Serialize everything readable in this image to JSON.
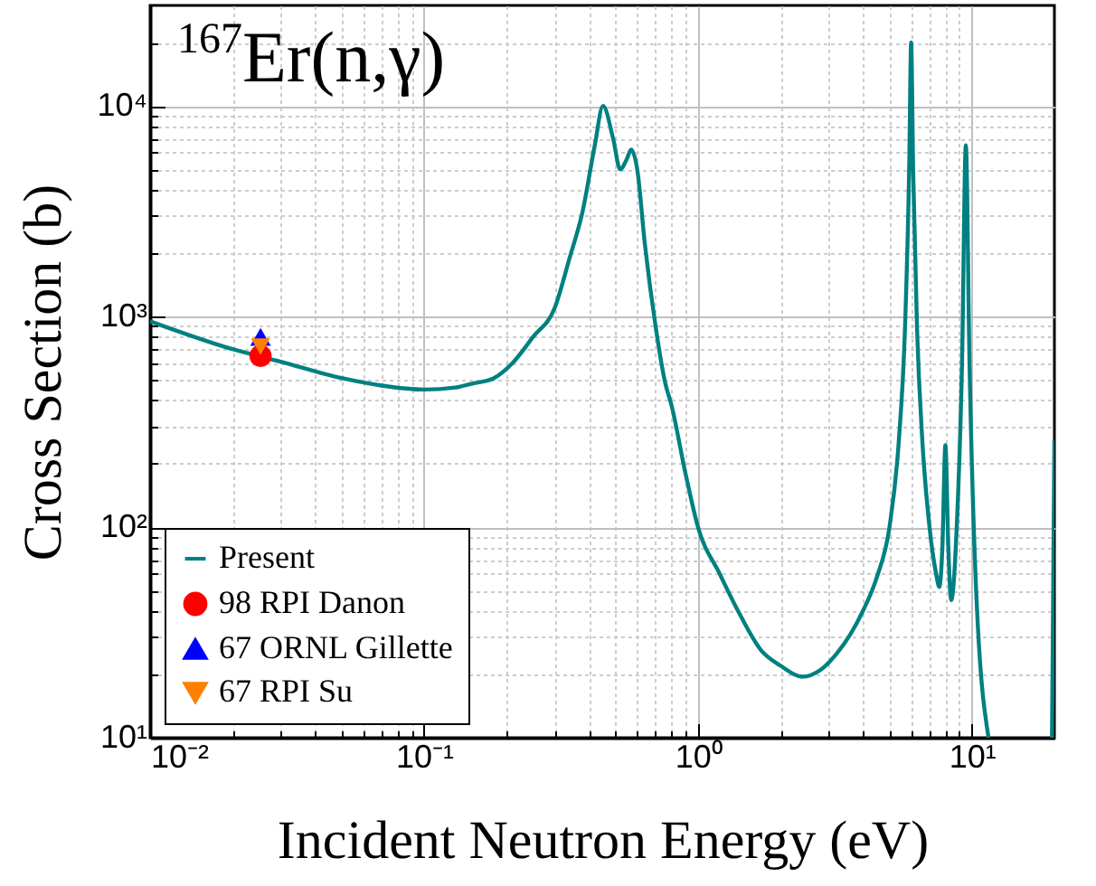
{
  "chart_data": {
    "type": "line",
    "title": "$^{167}$Er(n,γ)",
    "xlabel": "Incident Neutron Energy (eV)",
    "ylabel": "Cross Section (b)",
    "log": "xy",
    "grid": true,
    "legend": "bottom left",
    "xlim": [
      0.01,
      20
    ],
    "ylim": [
      10,
      30000
    ],
    "xticks": [
      {
        "value": 0.01,
        "label": "10⁻²"
      },
      {
        "value": 0.02,
        "label": null
      },
      {
        "value": 0.03,
        "label": null
      },
      {
        "value": 0.04,
        "label": null
      },
      {
        "value": 0.05,
        "label": null
      },
      {
        "value": 0.06,
        "label": null
      },
      {
        "value": 0.07,
        "label": null
      },
      {
        "value": 0.08,
        "label": null
      },
      {
        "value": 0.09,
        "label": null
      },
      {
        "value": 0.1,
        "label": "10⁻¹"
      },
      {
        "value": 0.2,
        "label": null
      },
      {
        "value": 0.3,
        "label": null
      },
      {
        "value": 0.4,
        "label": null
      },
      {
        "value": 0.5,
        "label": null
      },
      {
        "value": 0.6,
        "label": null
      },
      {
        "value": 0.7,
        "label": null
      },
      {
        "value": 0.8,
        "label": null
      },
      {
        "value": 0.9,
        "label": null
      },
      {
        "value": 1,
        "label": "10⁰"
      },
      {
        "value": 2,
        "label": null
      },
      {
        "value": 3,
        "label": null
      },
      {
        "value": 4,
        "label": null
      },
      {
        "value": 5,
        "label": null
      },
      {
        "value": 6,
        "label": null
      },
      {
        "value": 7,
        "label": null
      },
      {
        "value": 8,
        "label": null
      },
      {
        "value": 9,
        "label": null
      },
      {
        "value": 10,
        "label": "10¹"
      }
    ],
    "yticks": [
      {
        "value": 10,
        "label": "10¹"
      },
      {
        "value": 20,
        "label": null
      },
      {
        "value": 30,
        "label": null
      },
      {
        "value": 40,
        "label": null
      },
      {
        "value": 50,
        "label": null
      },
      {
        "value": 60,
        "label": null
      },
      {
        "value": 70,
        "label": null
      },
      {
        "value": 80,
        "label": null
      },
      {
        "value": 90,
        "label": null
      },
      {
        "value": 100,
        "label": "10²"
      },
      {
        "value": 200,
        "label": null
      },
      {
        "value": 300,
        "label": null
      },
      {
        "value": 400,
        "label": null
      },
      {
        "value": 500,
        "label": null
      },
      {
        "value": 600,
        "label": null
      },
      {
        "value": 700,
        "label": null
      },
      {
        "value": 800,
        "label": null
      },
      {
        "value": 900,
        "label": null
      },
      {
        "value": 1000,
        "label": "10³"
      },
      {
        "value": 2000,
        "label": null
      },
      {
        "value": 3000,
        "label": null
      },
      {
        "value": 4000,
        "label": null
      },
      {
        "value": 5000,
        "label": null
      },
      {
        "value": 6000,
        "label": null
      },
      {
        "value": 7000,
        "label": null
      },
      {
        "value": 8000,
        "label": null
      },
      {
        "value": 9000,
        "label": null
      },
      {
        "value": 10000,
        "label": "10⁴"
      },
      {
        "value": 20000,
        "label": null
      }
    ],
    "series": [
      {
        "name": "Present",
        "color": "#008080",
        "x": [
          0.01,
          0.02,
          0.03,
          0.05,
          0.07,
          0.1,
          0.13,
          0.15,
          0.18,
          0.21,
          0.25,
          0.3,
          0.34,
          0.38,
          0.42,
          0.45,
          0.49,
          0.52,
          0.55,
          0.57,
          0.6,
          0.64,
          0.7,
          0.76,
          0.8,
          0.9,
          1.0,
          1.2,
          1.4,
          1.7,
          2.0,
          2.4,
          2.8,
          3.2,
          3.6,
          4.0,
          4.5,
          5.0,
          5.4,
          5.7,
          5.9,
          6.0,
          6.1,
          6.3,
          6.6,
          7.0,
          7.4,
          7.6,
          7.8,
          8.0,
          8.2,
          8.4,
          8.8,
          9.2,
          9.5,
          9.8,
          10.3,
          11.5,
          15,
          19.6,
          20
        ],
        "values": [
          950,
          700,
          610,
          510,
          470,
          450,
          460,
          480,
          510,
          600,
          800,
          1100,
          1900,
          3200,
          6500,
          10000,
          7000,
          5000,
          5600,
          6200,
          5000,
          2200,
          900,
          480,
          380,
          180,
          100,
          60,
          40,
          26,
          22,
          19.5,
          21,
          25,
          31,
          40,
          58,
          100,
          250,
          900,
          5000,
          20000,
          5000,
          900,
          250,
          100,
          60,
          52,
          80,
          245,
          80,
          45,
          100,
          600,
          6500,
          600,
          60,
          10,
          null,
          10,
          260
        ]
      },
      {
        "name": "98 RPI Danon",
        "type": "scatter",
        "marker": "circle",
        "color": "#ff0000",
        "x": [
          0.0253
        ],
        "values": [
          650
        ]
      },
      {
        "name": "67 ORNL Gillette",
        "type": "scatter",
        "marker": "triangle",
        "color": "#0000ff",
        "x": [
          0.0253
        ],
        "values": [
          800
        ]
      },
      {
        "name": "67 RPI Su",
        "type": "scatter",
        "marker": "triangle-down",
        "color": "#ff8000",
        "x": [
          0.0253
        ],
        "values": [
          720
        ]
      }
    ]
  }
}
